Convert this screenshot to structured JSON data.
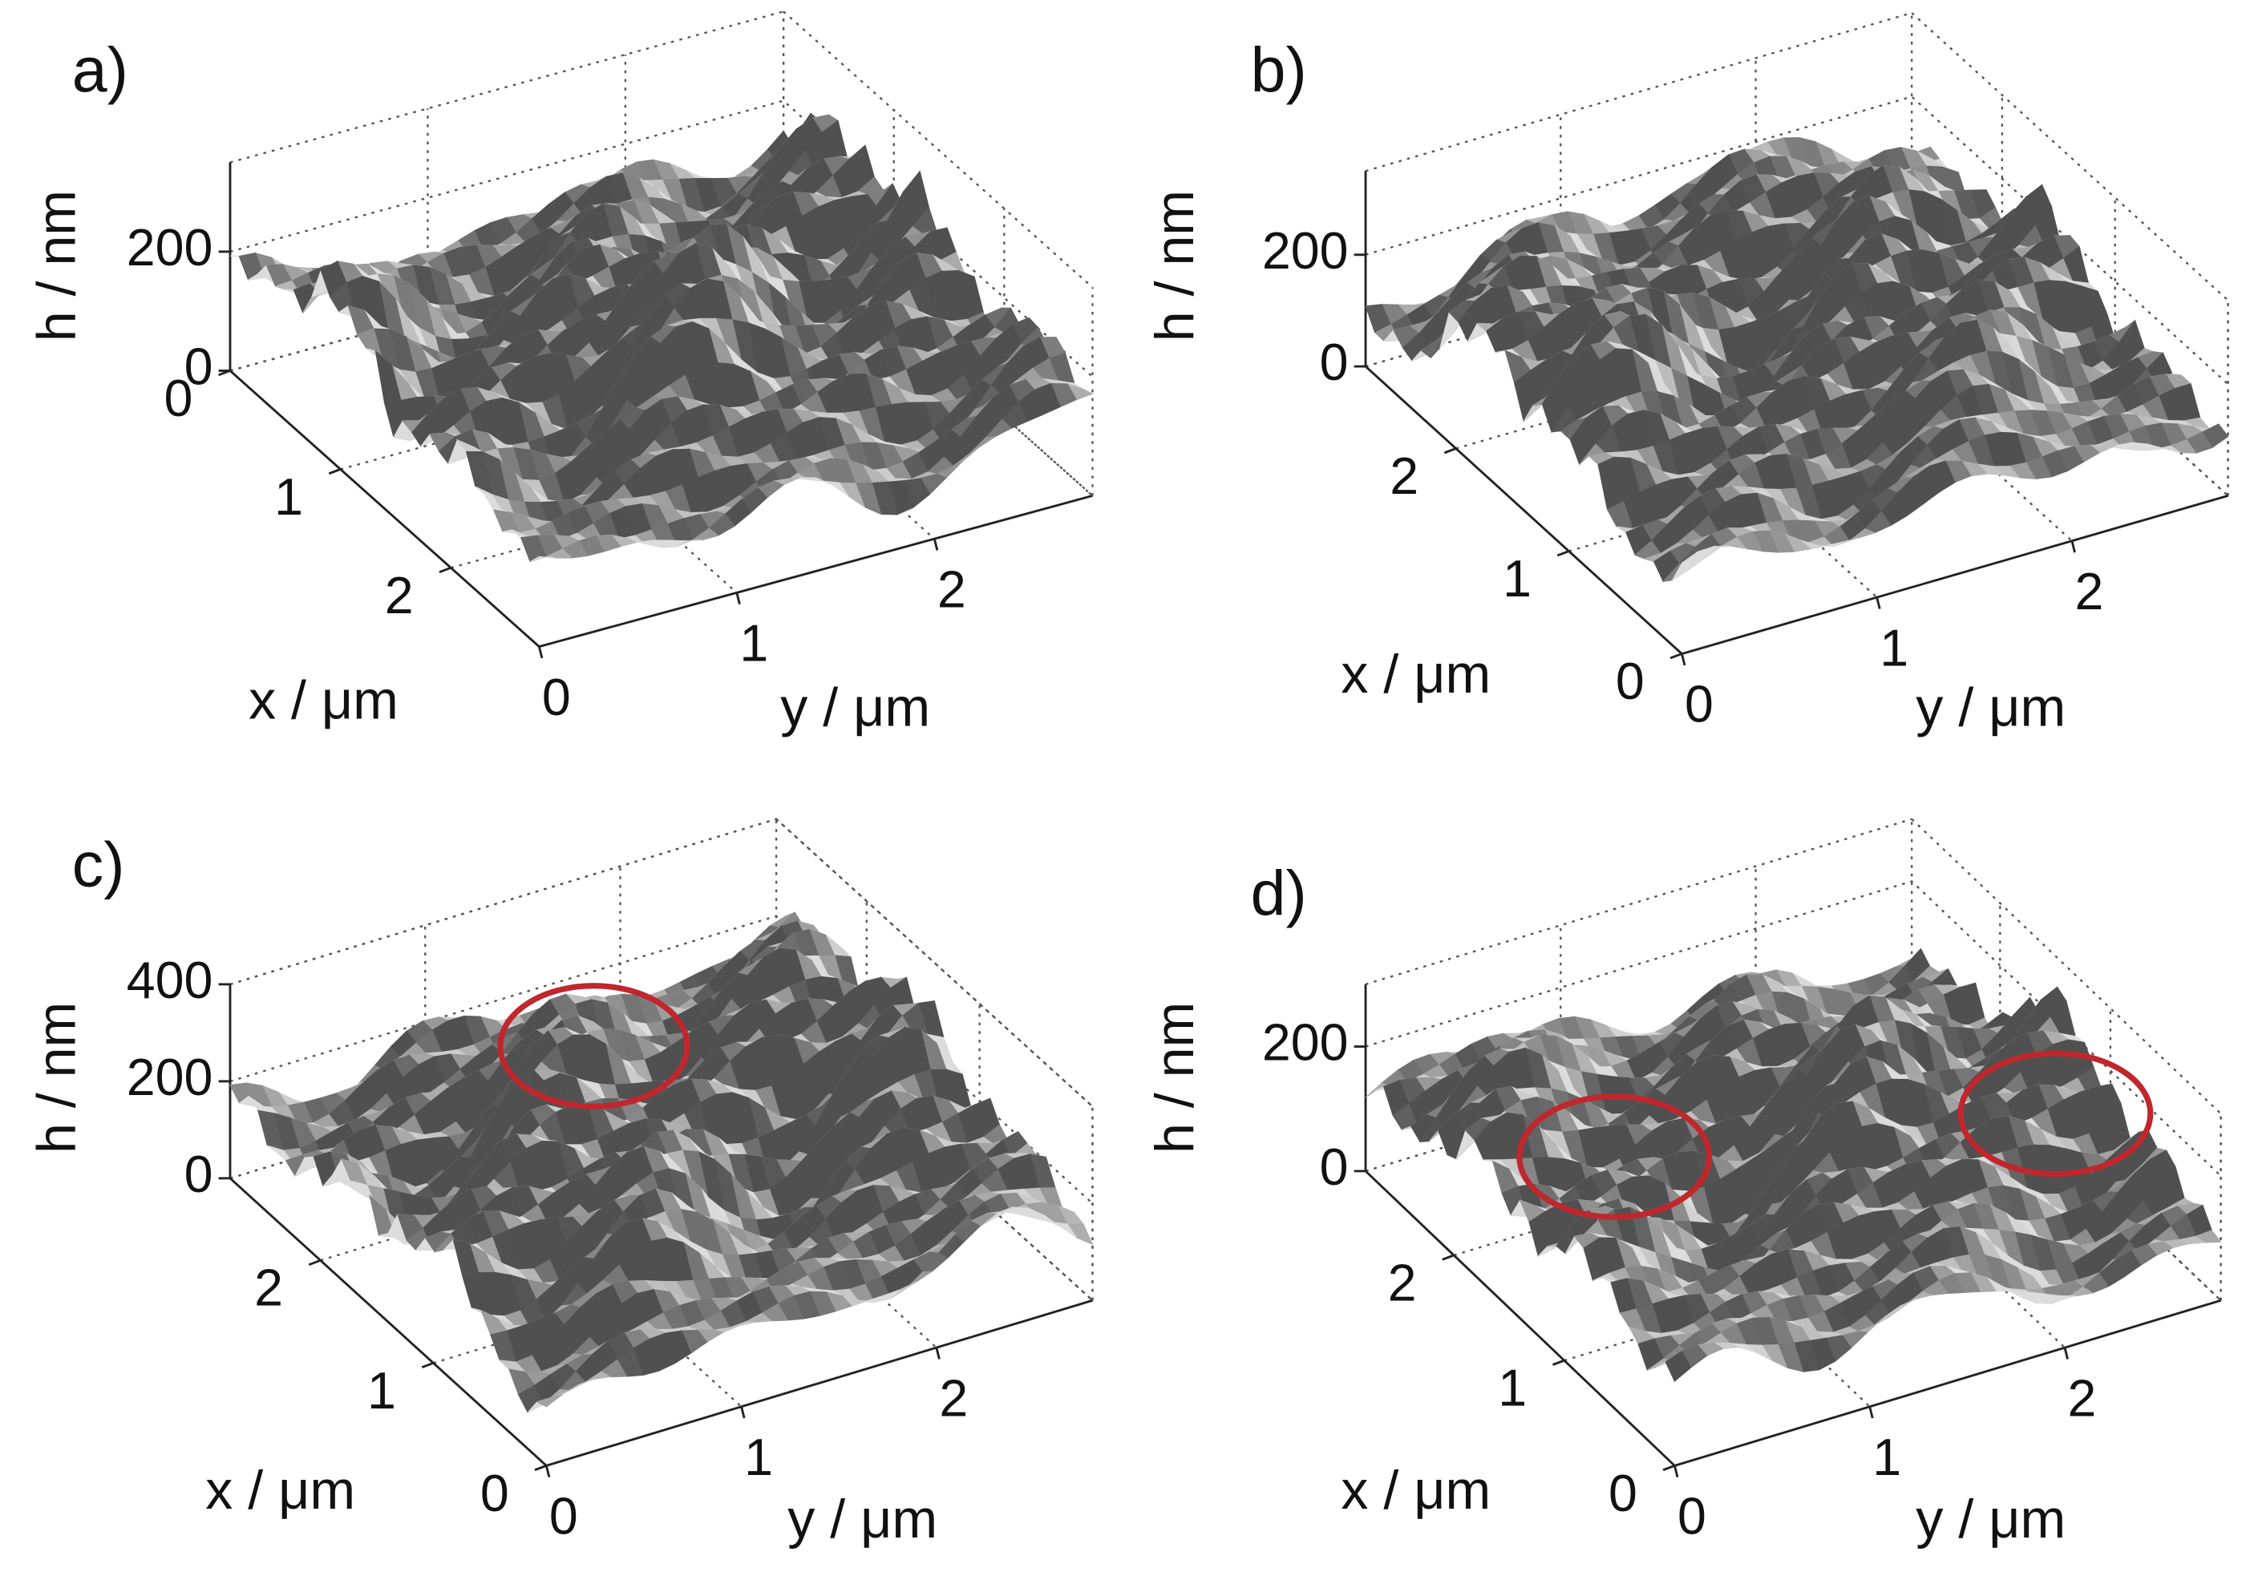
{
  "chart_data": [
    {
      "type": "surface",
      "label": "a)",
      "xlabel": "x / μm",
      "ylabel": "y / μm",
      "zlabel": "h / nm",
      "xlim": [
        0,
        2.8
      ],
      "ylim": [
        0,
        2.8
      ],
      "zlim": [
        0,
        350
      ],
      "xticks": [
        0,
        1,
        2
      ],
      "yticks": [
        0,
        1,
        2
      ],
      "zticks": [
        0,
        200
      ],
      "xreverse": false
    },
    {
      "type": "surface",
      "label": "b)",
      "xlabel": "x / μm",
      "ylabel": "y / μm",
      "zlabel": "h / nm",
      "xlim": [
        0,
        2.8
      ],
      "ylim": [
        0,
        2.8
      ],
      "zlim": [
        0,
        350
      ],
      "xticks": [
        0,
        1,
        2
      ],
      "yticks": [
        0,
        1,
        2
      ],
      "zticks": [
        0,
        200
      ],
      "xreverse": true
    },
    {
      "type": "surface",
      "label": "c)",
      "xlabel": "x / μm",
      "ylabel": "y / μm",
      "zlabel": "h / nm",
      "xlim": [
        0,
        2.8
      ],
      "ylim": [
        0,
        2.8
      ],
      "zlim": [
        0,
        400
      ],
      "xticks": [
        0,
        1,
        2
      ],
      "yticks": [
        0,
        1,
        2
      ],
      "zticks": [
        0,
        200,
        400
      ],
      "xreverse": true
    },
    {
      "type": "surface",
      "label": "d)",
      "xlabel": "x / μm",
      "ylabel": "y / μm",
      "zlabel": "h / nm",
      "xlim": [
        0,
        2.8
      ],
      "ylim": [
        0,
        2.8
      ],
      "zlim": [
        0,
        300
      ],
      "xticks": [
        0,
        1,
        2
      ],
      "yticks": [
        0,
        1,
        2
      ],
      "zticks": [
        0,
        200
      ],
      "xreverse": true
    }
  ]
}
